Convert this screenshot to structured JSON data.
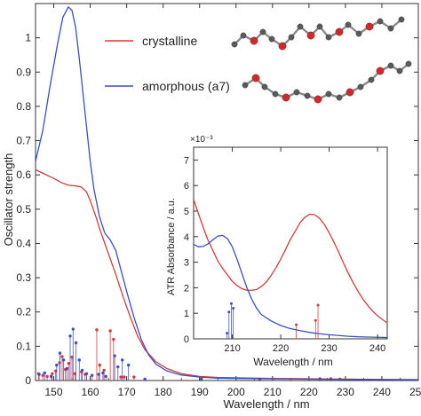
{
  "chart_data": [
    {
      "type": "line",
      "xlabel": "Wavelength / nm",
      "ylabel": "Oscillator strength",
      "xlim": [
        145,
        250
      ],
      "ylim": [
        0,
        1.1
      ],
      "xticks": [
        "150",
        "160",
        "170",
        "180",
        "190",
        "200",
        "210",
        "220",
        "230",
        "240",
        "250"
      ],
      "yticks": [
        "0",
        "0.1",
        "0.2",
        "0.3",
        "0.4",
        "0.5",
        "0.6",
        "0.7",
        "0.8",
        "0.9",
        "1"
      ],
      "legend_position": "top-center",
      "colors": {
        "crystalline": "#d63a3a",
        "amorphous": "#3a4fc4"
      },
      "series": [
        {
          "name": "crystalline",
          "color": "#d63a3a",
          "x": [
            145,
            147,
            150,
            152,
            154,
            156,
            157.5,
            159,
            160,
            161.5,
            163,
            165,
            167,
            169,
            171,
            173,
            175,
            178,
            181,
            185,
            190,
            195,
            200,
            210,
            220,
            230,
            240,
            250
          ],
          "y": [
            0.615,
            0.605,
            0.59,
            0.578,
            0.57,
            0.568,
            0.565,
            0.55,
            0.525,
            0.48,
            0.43,
            0.37,
            0.31,
            0.245,
            0.185,
            0.13,
            0.09,
            0.055,
            0.035,
            0.02,
            0.012,
            0.009,
            0.008,
            0.006,
            0.005,
            0.004,
            0.003,
            0.003
          ]
        },
        {
          "name": "amorphous (a7)",
          "color": "#3a4fc4",
          "x": [
            145,
            147,
            149,
            151,
            152.5,
            154,
            155,
            156,
            157,
            158,
            159,
            160,
            161,
            162.5,
            164,
            165.5,
            167,
            168.5,
            170,
            172,
            174,
            176,
            178,
            181,
            185,
            190,
            195,
            200,
            210,
            220,
            230,
            240,
            250
          ],
          "y": [
            0.64,
            0.73,
            0.86,
            0.98,
            1.06,
            1.09,
            1.08,
            1.03,
            0.94,
            0.84,
            0.74,
            0.64,
            0.56,
            0.48,
            0.43,
            0.41,
            0.38,
            0.32,
            0.26,
            0.185,
            0.12,
            0.075,
            0.048,
            0.028,
            0.016,
            0.01,
            0.007,
            0.006,
            0.005,
            0.004,
            0.003,
            0.003,
            0.002
          ]
        }
      ],
      "stick_spectra": [
        {
          "name": "crystalline",
          "x": [
            145.8,
            147,
            148.2,
            149.6,
            150.5,
            151.6,
            152.3,
            153.2,
            154.1,
            155,
            155.8,
            157.6,
            158.6,
            161.8,
            162.6,
            163.8,
            165.5,
            166.4,
            168.4,
            169.3,
            172
          ],
          "y": [
            0.02,
            0.015,
            0.012,
            0.02,
            0.028,
            0.052,
            0.07,
            0.032,
            0.05,
            0.068,
            0.02,
            0.025,
            0.018,
            0.148,
            0.045,
            0.03,
            0.145,
            0.12,
            0.01,
            0.01,
            0.01
          ]
        },
        {
          "name": "amorphous (a7)",
          "x": [
            146,
            147.5,
            149.3,
            150.8,
            151.7,
            152.7,
            153.6,
            154.5,
            155.3,
            156.1,
            157,
            157.8,
            159,
            160.5,
            162.3,
            163.5,
            164.3,
            166.7,
            167.6,
            168.8,
            170.5,
            175,
            190.5,
            206.5,
            223,
            226,
            228.5
          ],
          "y": [
            0.018,
            0.022,
            0.012,
            0.045,
            0.08,
            0.06,
            0.035,
            0.13,
            0.15,
            0.11,
            0.06,
            0.03,
            0.02,
            0.015,
            0.018,
            0.022,
            0.012,
            0.072,
            0.04,
            0.06,
            0.045,
            0.004,
            0.004,
            0.004,
            0.005,
            0.005,
            0.004
          ]
        }
      ]
    },
    {
      "type": "line",
      "xlabel": "Wavelength / nm",
      "ylabel": "ATR Absorbance / a.u.",
      "y_multiplier": "×10⁻³",
      "xlim": [
        202,
        242
      ],
      "ylim": [
        0,
        7.5
      ],
      "xticks": [
        "210",
        "220",
        "230",
        "240"
      ],
      "yticks": [
        "0",
        "1",
        "2",
        "3",
        "4",
        "5",
        "6",
        "7"
      ],
      "series": [
        {
          "name": "crystalline",
          "color": "#d63a3a",
          "x": [
            202,
            203,
            204,
            205,
            206,
            207,
            208,
            209,
            210,
            211,
            212,
            213,
            214,
            215,
            216,
            217,
            218,
            219,
            220,
            221,
            222,
            223,
            224,
            225,
            226,
            227,
            228,
            229,
            230,
            231,
            232,
            233,
            234,
            235,
            236,
            237,
            238,
            239,
            240,
            241,
            242
          ],
          "y": [
            5.45,
            4.9,
            4.35,
            3.85,
            3.45,
            3.05,
            2.75,
            2.5,
            2.25,
            2.08,
            1.96,
            1.9,
            1.9,
            1.93,
            2.05,
            2.22,
            2.48,
            2.78,
            3.12,
            3.5,
            3.9,
            4.22,
            4.55,
            4.76,
            4.88,
            4.86,
            4.72,
            4.48,
            4.15,
            3.78,
            3.38,
            2.95,
            2.55,
            2.18,
            1.85,
            1.55,
            1.3,
            1.08,
            0.9,
            0.76,
            0.62
          ]
        },
        {
          "name": "amorphous (a7)",
          "color": "#3a4fc4",
          "x": [
            202,
            203,
            204,
            205,
            206,
            207,
            208,
            209,
            210,
            211,
            212,
            213,
            214,
            215,
            216,
            218,
            220,
            222,
            224,
            226,
            228,
            230,
            232,
            234,
            236,
            238,
            240,
            242
          ],
          "y": [
            3.7,
            3.6,
            3.62,
            3.72,
            3.88,
            4.02,
            4.05,
            3.92,
            3.6,
            3.1,
            2.55,
            2.0,
            1.55,
            1.2,
            0.95,
            0.7,
            0.52,
            0.4,
            0.32,
            0.25,
            0.2,
            0.16,
            0.13,
            0.1,
            0.08,
            0.07,
            0.06,
            0.05
          ]
        }
      ],
      "stick_spectra": [
        {
          "name": "crystalline",
          "x": [
            223.2,
            227.2,
            227.7
          ],
          "y": [
            0.55,
            0.72,
            1.32
          ]
        },
        {
          "name": "amorphous (a7)",
          "x": [
            208.9,
            209.3,
            209.8,
            210.2
          ],
          "y": [
            0.22,
            1.05,
            1.38,
            1.2
          ]
        }
      ]
    }
  ]
}
